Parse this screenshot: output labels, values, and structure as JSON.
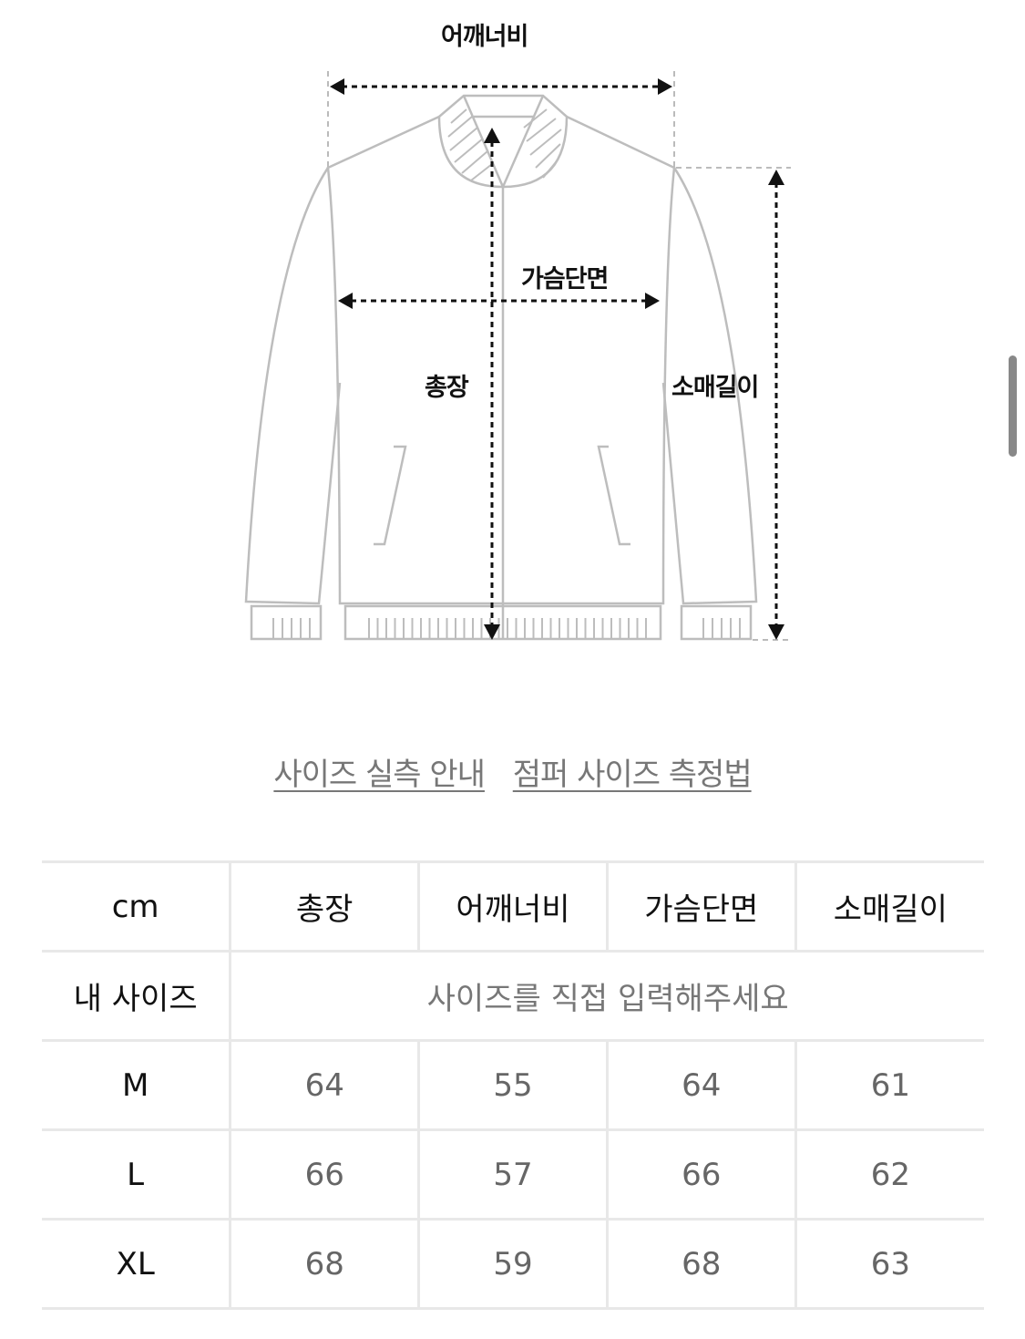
{
  "diagram": {
    "labels": {
      "shoulder": "어깨너비",
      "chest": "가슴단면",
      "length": "총장",
      "sleeve": "소매길이"
    }
  },
  "links": [
    {
      "label": "사이즈 실측 안내"
    },
    {
      "label": "점퍼 사이즈 측정법"
    }
  ],
  "table": {
    "unit": "cm",
    "headers": [
      "총장",
      "어깨너비",
      "가슴단면",
      "소매길이"
    ],
    "my_size": {
      "label": "내 사이즈",
      "placeholder": "사이즈를 직접 입력해주세요"
    },
    "rows": [
      {
        "size": "M",
        "values": [
          "64",
          "55",
          "64",
          "61"
        ]
      },
      {
        "size": "L",
        "values": [
          "66",
          "57",
          "66",
          "62"
        ]
      },
      {
        "size": "XL",
        "values": [
          "68",
          "59",
          "68",
          "63"
        ]
      }
    ]
  }
}
